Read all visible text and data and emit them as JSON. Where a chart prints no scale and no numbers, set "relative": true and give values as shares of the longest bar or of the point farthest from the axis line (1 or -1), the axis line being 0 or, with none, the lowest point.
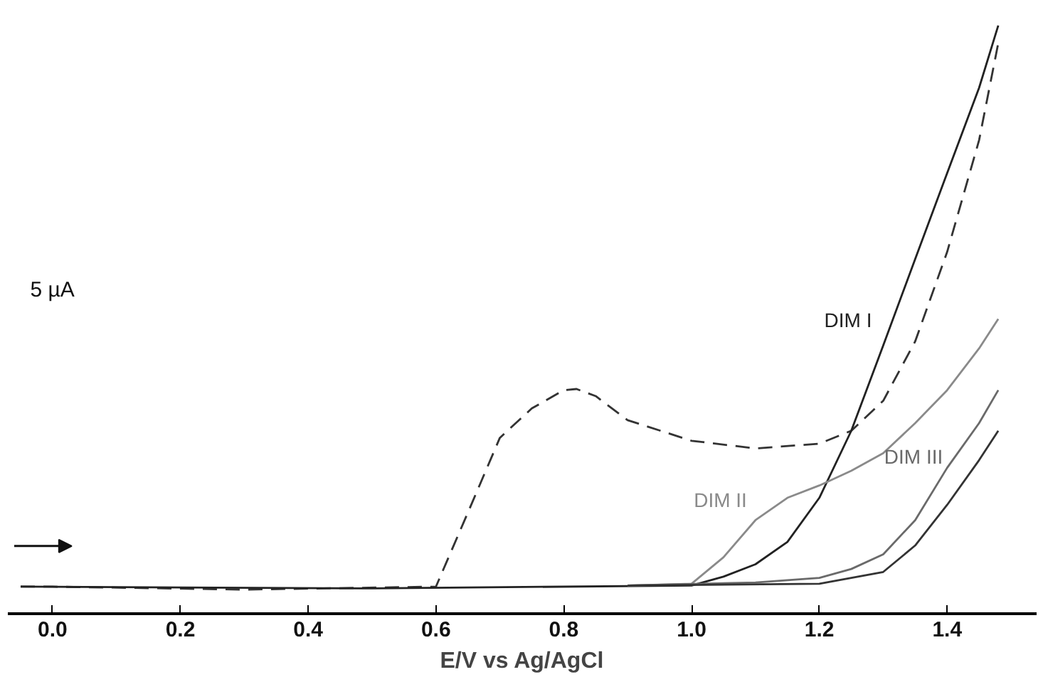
{
  "chart_data": {
    "type": "line",
    "relative": true,
    "xlabel": "E/V vs Ag/AgCl",
    "xlim": [
      -0.07,
      1.54
    ],
    "xticks": [
      {
        "value": 0,
        "label": "0.0"
      },
      0.2,
      0.4,
      0.6,
      0.8,
      {
        "value": 1,
        "label": "1.0"
      },
      1.2,
      1.4
    ],
    "tick_labels": "x",
    "annotations": [
      "5 µA"
    ],
    "series": [
      {
        "color": "#333333",
        "line_style": "dashed",
        "x": [
          -0.05,
          0,
          0.3,
          0.6,
          0.65,
          0.7,
          0.75,
          0.8,
          0.82,
          0.85,
          0.9,
          1.0,
          1.1,
          1.2,
          1.25,
          1.3,
          1.35,
          1.4,
          1.45,
          1.48
        ],
        "values": [
          0.046,
          0.046,
          0.041,
          0.046,
          0.172,
          0.299,
          0.349,
          0.38,
          0.382,
          0.37,
          0.329,
          0.294,
          0.281,
          0.289,
          0.311,
          0.362,
          0.463,
          0.615,
          0.805,
          0.97
        ]
      },
      {
        "name": "DIM I",
        "color": "#222222",
        "x": [
          -0.05,
          0.5,
          1.0,
          1.05,
          1.1,
          1.15,
          1.2,
          1.25,
          1.3,
          1.35,
          1.4,
          1.45,
          1.48
        ],
        "values": [
          0.046,
          0.043,
          0.048,
          0.063,
          0.084,
          0.122,
          0.197,
          0.311,
          0.456,
          0.603,
          0.749,
          0.894,
          1.0
        ]
      },
      {
        "name": "DIM II",
        "color": "#8a8a8a",
        "x": [
          0.9,
          1.0,
          1.05,
          1.1,
          1.15,
          1.2,
          1.25,
          1.3,
          1.35,
          1.4,
          1.45,
          1.48
        ],
        "values": [
          0.048,
          0.051,
          0.096,
          0.159,
          0.197,
          0.218,
          0.243,
          0.273,
          0.324,
          0.38,
          0.451,
          0.501
        ]
      },
      {
        "name": "DIM III",
        "color": "#6a6a6a",
        "x": [
          0.9,
          1.1,
          1.2,
          1.25,
          1.3,
          1.35,
          1.4,
          1.45,
          1.48
        ],
        "values": [
          0.048,
          0.053,
          0.061,
          0.076,
          0.101,
          0.159,
          0.248,
          0.324,
          0.38
        ]
      },
      {
        "color": "#333333",
        "x": [
          0.9,
          1.2,
          1.3,
          1.35,
          1.4,
          1.45,
          1.48
        ],
        "values": [
          0.048,
          0.051,
          0.071,
          0.116,
          0.185,
          0.261,
          0.311
        ]
      }
    ]
  }
}
